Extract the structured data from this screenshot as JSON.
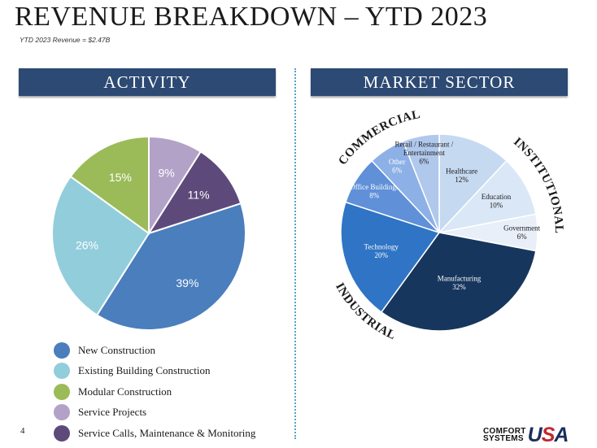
{
  "page": {
    "title": "REVENUE BREAKDOWN – YTD 2023",
    "subtitle": "YTD 2023 Revenue = $2.47B",
    "page_number": "4",
    "logo": {
      "line1": "COMFORT",
      "line2": "SYSTEMS",
      "mark_u": "U",
      "mark_s": "S",
      "mark_a": "A"
    }
  },
  "panels": {
    "activity_header": "ACTIVITY",
    "market_header": "MARKET SECTOR"
  },
  "chart_data": [
    {
      "type": "pie",
      "title": "ACTIVITY",
      "legend_position": "bottom",
      "slices": [
        {
          "label": "Service Projects",
          "value": 9,
          "value_label": "9%",
          "color": "#b3a2c8"
        },
        {
          "label": "Service Calls, Maintenance & Monitoring",
          "value": 11,
          "value_label": "11%",
          "color": "#5d4a7a"
        },
        {
          "label": "New Construction",
          "value": 39,
          "value_label": "39%",
          "color": "#4a7ebd"
        },
        {
          "label": "Existing Building Construction",
          "value": 26,
          "value_label": "26%",
          "color": "#92cddc"
        },
        {
          "label": "Modular Construction",
          "value": 15,
          "value_label": "15%",
          "color": "#9bbb59"
        }
      ],
      "legend": [
        {
          "label": "New Construction",
          "color": "#4a7ebd"
        },
        {
          "label": "Existing Building Construction",
          "color": "#92cddc"
        },
        {
          "label": "Modular Construction",
          "color": "#9bbb59"
        },
        {
          "label": "Service Projects",
          "color": "#b3a2c8"
        },
        {
          "label": "Service Calls, Maintenance & Monitoring",
          "color": "#5d4a7a"
        }
      ]
    },
    {
      "type": "pie",
      "title": "MARKET SECTOR",
      "slices": [
        {
          "label": "Healthcare",
          "value": 12,
          "value_label": "12%",
          "color": "#c5d9f1",
          "text_color": "#1a1a1a"
        },
        {
          "label": "Education",
          "value": 10,
          "value_label": "10%",
          "color": "#dae7f6",
          "text_color": "#1a1a1a"
        },
        {
          "label": "Government",
          "value": 6,
          "value_label": "6%",
          "color": "#e9eff8",
          "text_color": "#1a1a1a"
        },
        {
          "label": "Manufacturing",
          "value": 32,
          "value_label": "32%",
          "color": "#17365d",
          "text_color": "#ffffff"
        },
        {
          "label": "Technology",
          "value": 20,
          "value_label": "20%",
          "color": "#2f74c5",
          "text_color": "#ffffff"
        },
        {
          "label": "Office Buildings",
          "value": 8,
          "value_label": "8%",
          "color": "#5f90d8",
          "text_color": "#ffffff"
        },
        {
          "label": "Other",
          "value": 6,
          "value_label": "6%",
          "color": "#8db1e6",
          "text_color": "#ffffff"
        },
        {
          "label": "Retail / Restaurant / Entertainment",
          "value": 6,
          "value_label": "6%",
          "color": "#b0c8ec",
          "text_color": "#1a1a1a"
        }
      ],
      "groups": [
        {
          "label": "INSTITUTIONAL"
        },
        {
          "label": "INDUSTRIAL"
        },
        {
          "label": "COMMERCIAL"
        }
      ]
    }
  ]
}
